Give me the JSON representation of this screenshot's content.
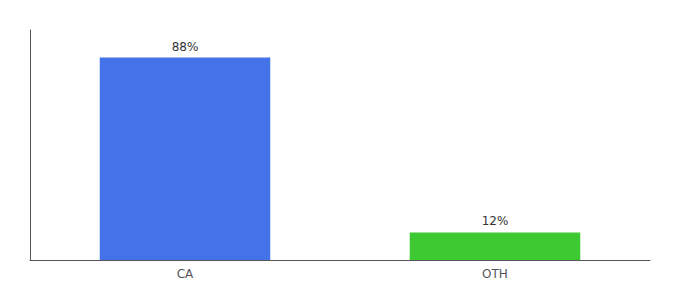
{
  "chart_data": {
    "type": "bar",
    "categories": [
      "CA",
      "OTH"
    ],
    "values": [
      88,
      12
    ],
    "value_labels": [
      "88%",
      "12%"
    ],
    "colors": [
      "#4472e8",
      "#3ec832"
    ],
    "ylim": [
      0,
      100
    ],
    "yticks": [],
    "tick_labels": "x",
    "grid": false,
    "data_labels": true
  }
}
